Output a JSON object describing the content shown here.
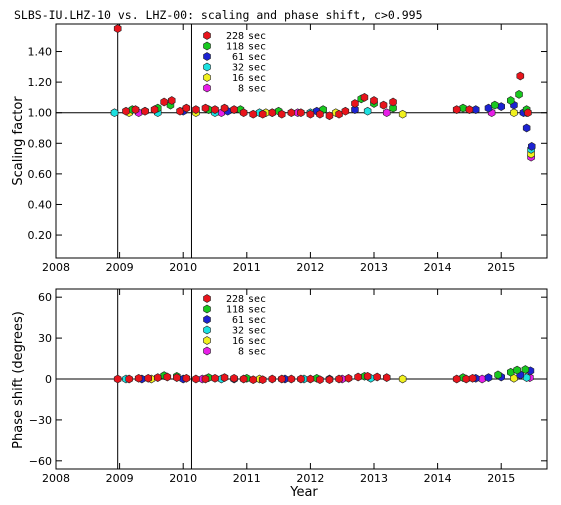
{
  "chart_data": [
    {
      "type": "scatter",
      "title": "SLBS-IU.LHZ-10 vs. LHZ-00: scaling and phase shift, c>0.995",
      "xlabel": "",
      "ylabel": "Scaling factor",
      "xlim": [
        2008,
        2015.72
      ],
      "ylim": [
        0.05,
        1.58
      ],
      "yticks": [
        0.2,
        0.4,
        0.6,
        0.8,
        1.0,
        1.2,
        1.4
      ],
      "ytick_labels": [
        "0.20",
        "0.40",
        "0.60",
        "0.80",
        "1.00",
        "1.20",
        "1.40"
      ],
      "xticks": [
        2008,
        2009,
        2010,
        2011,
        2012,
        2013,
        2014,
        2015
      ],
      "xtick_labels": [
        "2008",
        "2009",
        "2010",
        "2011",
        "2012",
        "2013",
        "2014",
        "2015"
      ],
      "reference_line": 1.0,
      "event_lines": [
        2008.97,
        2010.13
      ],
      "legend_position": "top-left",
      "series": [
        {
          "name": "228 sec",
          "color": "#e8141c",
          "points": [
            [
              2008.97,
              1.55
            ],
            [
              2009.1,
              1.01
            ],
            [
              2009.25,
              1.02
            ],
            [
              2009.4,
              1.01
            ],
            [
              2009.55,
              1.02
            ],
            [
              2009.7,
              1.07
            ],
            [
              2009.82,
              1.08
            ],
            [
              2009.95,
              1.01
            ],
            [
              2010.05,
              1.03
            ],
            [
              2010.2,
              1.02
            ],
            [
              2010.35,
              1.03
            ],
            [
              2010.5,
              1.02
            ],
            [
              2010.65,
              1.03
            ],
            [
              2010.8,
              1.02
            ],
            [
              2010.95,
              1.0
            ],
            [
              2011.1,
              0.99
            ],
            [
              2011.25,
              0.99
            ],
            [
              2011.4,
              1.0
            ],
            [
              2011.55,
              0.99
            ],
            [
              2011.7,
              1.0
            ],
            [
              2011.85,
              1.0
            ],
            [
              2012.0,
              0.99
            ],
            [
              2012.15,
              0.99
            ],
            [
              2012.3,
              0.98
            ],
            [
              2012.45,
              0.99
            ],
            [
              2012.55,
              1.01
            ],
            [
              2012.7,
              1.06
            ],
            [
              2012.85,
              1.1
            ],
            [
              2013.0,
              1.08
            ],
            [
              2013.15,
              1.05
            ],
            [
              2013.3,
              1.07
            ],
            [
              2014.3,
              1.02
            ],
            [
              2014.5,
              1.02
            ],
            [
              2015.3,
              1.24
            ],
            [
              2015.42,
              1.0
            ]
          ]
        },
        {
          "name": "118 sec",
          "color": "#18c81e",
          "points": [
            [
              2009.2,
              1.02
            ],
            [
              2009.6,
              1.03
            ],
            [
              2009.8,
              1.05
            ],
            [
              2010.4,
              1.02
            ],
            [
              2010.9,
              1.02
            ],
            [
              2011.5,
              1.01
            ],
            [
              2012.2,
              1.02
            ],
            [
              2012.8,
              1.09
            ],
            [
              2013.0,
              1.06
            ],
            [
              2013.3,
              1.03
            ],
            [
              2014.4,
              1.03
            ],
            [
              2014.9,
              1.05
            ],
            [
              2015.15,
              1.08
            ],
            [
              2015.28,
              1.12
            ],
            [
              2015.4,
              1.02
            ]
          ]
        },
        {
          "name": "61 sec",
          "color": "#1c22d2",
          "points": [
            [
              2009.4,
              1.01
            ],
            [
              2010.0,
              1.01
            ],
            [
              2010.7,
              1.01
            ],
            [
              2011.4,
              1.0
            ],
            [
              2012.1,
              1.01
            ],
            [
              2012.7,
              1.02
            ],
            [
              2014.6,
              1.02
            ],
            [
              2014.8,
              1.03
            ],
            [
              2015.0,
              1.04
            ],
            [
              2015.2,
              1.05
            ],
            [
              2015.35,
              1.0
            ],
            [
              2015.4,
              0.9
            ],
            [
              2015.48,
              0.78
            ]
          ]
        },
        {
          "name": "32 sec",
          "color": "#1ce0e0",
          "points": [
            [
              2008.92,
              1.0
            ],
            [
              2009.6,
              1.0
            ],
            [
              2010.5,
              1.0
            ],
            [
              2011.2,
              1.0
            ],
            [
              2012.0,
              1.0
            ],
            [
              2012.9,
              1.01
            ],
            [
              2015.4,
              1.0
            ],
            [
              2015.47,
              0.76
            ]
          ]
        },
        {
          "name": "16 sec",
          "color": "#f0f01e",
          "points": [
            [
              2009.15,
              1.0
            ],
            [
              2010.2,
              1.0
            ],
            [
              2011.3,
              1.0
            ],
            [
              2012.4,
              1.0
            ],
            [
              2013.45,
              0.99
            ],
            [
              2015.2,
              1.0
            ],
            [
              2015.47,
              0.73
            ]
          ]
        },
        {
          "name": "8 sec",
          "color": "#e81ee8",
          "points": [
            [
              2009.3,
              1.0
            ],
            [
              2010.6,
              1.0
            ],
            [
              2011.8,
              1.0
            ],
            [
              2013.2,
              1.0
            ],
            [
              2014.85,
              1.0
            ],
            [
              2015.47,
              0.71
            ]
          ]
        }
      ]
    },
    {
      "type": "scatter",
      "title": "",
      "xlabel": "Year",
      "ylabel": "Phase shift (degrees)",
      "xlim": [
        2008,
        2015.72
      ],
      "ylim": [
        -66,
        66
      ],
      "yticks": [
        -60,
        -30,
        0,
        30,
        60
      ],
      "ytick_labels": [
        "−60",
        "−30",
        "0",
        "30",
        "60"
      ],
      "xticks": [
        2008,
        2009,
        2010,
        2011,
        2012,
        2013,
        2014,
        2015
      ],
      "xtick_labels": [
        "2008",
        "2009",
        "2010",
        "2011",
        "2012",
        "2013",
        "2014",
        "2015"
      ],
      "reference_line": 0,
      "event_lines": [
        2008.97,
        2010.13
      ],
      "legend_position": "top-left",
      "series": [
        {
          "name": "228 sec",
          "color": "#e8141c",
          "points": [
            [
              2008.97,
              0
            ],
            [
              2009.15,
              0
            ],
            [
              2009.3,
              0.5
            ],
            [
              2009.45,
              0.5
            ],
            [
              2009.6,
              1
            ],
            [
              2009.75,
              1.5
            ],
            [
              2009.9,
              1
            ],
            [
              2010.05,
              0.5
            ],
            [
              2010.2,
              0
            ],
            [
              2010.35,
              0
            ],
            [
              2010.5,
              0.5
            ],
            [
              2010.65,
              1
            ],
            [
              2010.8,
              0.5
            ],
            [
              2010.95,
              0
            ],
            [
              2011.1,
              -0.5
            ],
            [
              2011.25,
              -0.5
            ],
            [
              2011.4,
              0
            ],
            [
              2011.55,
              0
            ],
            [
              2011.7,
              0
            ],
            [
              2011.85,
              0
            ],
            [
              2012.0,
              0
            ],
            [
              2012.15,
              -0.5
            ],
            [
              2012.3,
              -0.5
            ],
            [
              2012.45,
              0
            ],
            [
              2012.6,
              0.5
            ],
            [
              2012.75,
              1.5
            ],
            [
              2012.9,
              2
            ],
            [
              2013.05,
              1.5
            ],
            [
              2013.2,
              1
            ],
            [
              2014.3,
              0
            ],
            [
              2014.45,
              0
            ],
            [
              2014.55,
              0.5
            ]
          ]
        },
        {
          "name": "118 sec",
          "color": "#18c81e",
          "points": [
            [
              2009.7,
              2.5
            ],
            [
              2009.9,
              2
            ],
            [
              2010.4,
              1
            ],
            [
              2011.0,
              0.5
            ],
            [
              2012.1,
              0.5
            ],
            [
              2012.85,
              2
            ],
            [
              2014.4,
              1
            ],
            [
              2014.95,
              3
            ],
            [
              2015.15,
              5
            ],
            [
              2015.25,
              6.5
            ],
            [
              2015.38,
              7
            ]
          ]
        },
        {
          "name": "61 sec",
          "color": "#1c22d2",
          "points": [
            [
              2009.35,
              0
            ],
            [
              2010.0,
              0
            ],
            [
              2010.8,
              0
            ],
            [
              2011.6,
              0
            ],
            [
              2012.3,
              0
            ],
            [
              2014.6,
              0.5
            ],
            [
              2014.8,
              1
            ],
            [
              2015.0,
              1.5
            ],
            [
              2015.3,
              3
            ],
            [
              2015.46,
              6
            ]
          ]
        },
        {
          "name": "32 sec",
          "color": "#1ce0e0",
          "points": [
            [
              2009.1,
              0
            ],
            [
              2010.6,
              0
            ],
            [
              2011.9,
              0
            ],
            [
              2012.95,
              0.5
            ],
            [
              2015.4,
              1
            ]
          ]
        },
        {
          "name": "16 sec",
          "color": "#f0f01e",
          "points": [
            [
              2009.5,
              0
            ],
            [
              2011.2,
              0
            ],
            [
              2013.45,
              0
            ],
            [
              2015.2,
              0.5
            ]
          ]
        },
        {
          "name": "8 sec",
          "color": "#e81ee8",
          "points": [
            [
              2010.3,
              0
            ],
            [
              2012.5,
              0
            ],
            [
              2014.7,
              0
            ],
            [
              2015.45,
              1
            ]
          ]
        }
      ]
    }
  ]
}
